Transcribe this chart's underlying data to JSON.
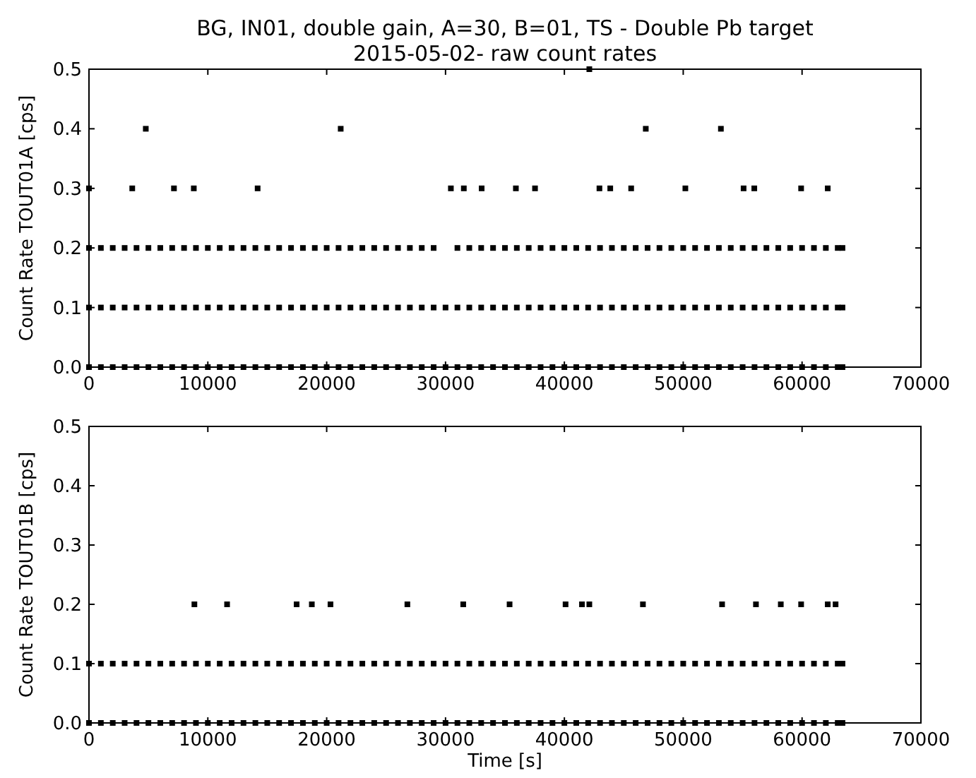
{
  "chart_data": [
    {
      "type": "scatter",
      "title": "BG, IN01, double gain, A=30, B=01, TS - Double Pb target",
      "subtitle": "2015-05-02- raw count rates",
      "ylabel": "Count Rate TOUT01A [cps]",
      "xlim": [
        0,
        70000
      ],
      "xticks": [
        0,
        10000,
        20000,
        30000,
        40000,
        50000,
        60000,
        70000
      ],
      "ylim": [
        0,
        0.5
      ],
      "yticks": [
        {
          "value": 0,
          "label": "0.0"
        },
        0.1,
        0.2,
        0.3,
        0.4,
        0.5
      ],
      "marker": "square",
      "grid": false,
      "series": [
        {
          "color": "#000000",
          "x": [
            0,
            1000,
            2000,
            3000,
            4000,
            5000,
            6000,
            7000,
            8000,
            9000,
            10000,
            11000,
            12000,
            13000,
            14000,
            15000,
            16000,
            17000,
            18000,
            19000,
            20000,
            21000,
            22000,
            23000,
            24000,
            25000,
            26000,
            27000,
            28000,
            29000,
            30000,
            31000,
            32000,
            33000,
            34000,
            35000,
            36000,
            37000,
            38000,
            39000,
            40000,
            41000,
            42000,
            43000,
            44000,
            45000,
            46000,
            47000,
            48000,
            49000,
            50000,
            51000,
            52000,
            53000,
            54000,
            55000,
            56000,
            57000,
            58000,
            59000,
            60000,
            61000,
            62000,
            63000,
            63400
          ],
          "values": [
            0,
            0,
            0,
            0,
            0,
            0,
            0,
            0,
            0,
            0,
            0,
            0,
            0,
            0,
            0,
            0,
            0,
            0,
            0,
            0,
            0,
            0,
            0,
            0,
            0,
            0,
            0,
            0,
            0,
            0,
            0,
            0,
            0,
            0,
            0,
            0,
            0,
            0,
            0,
            0,
            0,
            0,
            0,
            0,
            0,
            0,
            0,
            0,
            0,
            0,
            0,
            0,
            0,
            0,
            0,
            0,
            0,
            0,
            0,
            0,
            0,
            0,
            0,
            0,
            0
          ]
        },
        {
          "color": "#000000",
          "x": [
            0,
            1000,
            2000,
            3000,
            4000,
            5000,
            6000,
            7000,
            8000,
            9000,
            10000,
            11000,
            12000,
            13000,
            14000,
            15000,
            16000,
            17000,
            18000,
            19000,
            20000,
            21000,
            22000,
            23000,
            24000,
            25000,
            26000,
            27000,
            28000,
            29000,
            30000,
            31000,
            32000,
            33000,
            34000,
            35000,
            36000,
            37000,
            38000,
            39000,
            40000,
            41000,
            42000,
            43000,
            44000,
            45000,
            46000,
            47000,
            48000,
            49000,
            50000,
            51000,
            52000,
            53000,
            54000,
            55000,
            56000,
            57000,
            58000,
            59000,
            60000,
            61000,
            62000,
            63000,
            63400
          ],
          "values": [
            0.1,
            0.1,
            0.1,
            0.1,
            0.1,
            0.1,
            0.1,
            0.1,
            0.1,
            0.1,
            0.1,
            0.1,
            0.1,
            0.1,
            0.1,
            0.1,
            0.1,
            0.1,
            0.1,
            0.1,
            0.1,
            0.1,
            0.1,
            0.1,
            0.1,
            0.1,
            0.1,
            0.1,
            0.1,
            0.1,
            0.1,
            0.1,
            0.1,
            0.1,
            0.1,
            0.1,
            0.1,
            0.1,
            0.1,
            0.1,
            0.1,
            0.1,
            0.1,
            0.1,
            0.1,
            0.1,
            0.1,
            0.1,
            0.1,
            0.1,
            0.1,
            0.1,
            0.1,
            0.1,
            0.1,
            0.1,
            0.1,
            0.1,
            0.1,
            0.1,
            0.1,
            0.1,
            0.1,
            0.1,
            0.1
          ]
        },
        {
          "color": "#000000",
          "x": [
            0,
            1000,
            2000,
            3000,
            4000,
            5000,
            6000,
            7000,
            8000,
            9000,
            10000,
            11000,
            12000,
            13000,
            14000,
            15000,
            16000,
            17000,
            18000,
            19000,
            20000,
            21000,
            22000,
            23000,
            24000,
            25000,
            26000,
            27000,
            28000,
            29000,
            31000,
            32000,
            33000,
            34000,
            35000,
            36000,
            37000,
            38000,
            39000,
            40000,
            41000,
            42000,
            43000,
            44000,
            45000,
            46000,
            47000,
            48000,
            49000,
            50000,
            51000,
            52000,
            53000,
            54000,
            55000,
            56000,
            57000,
            58000,
            59000,
            60000,
            61000,
            62000,
            63000,
            63400
          ],
          "values": [
            0.2,
            0.2,
            0.2,
            0.2,
            0.2,
            0.2,
            0.2,
            0.2,
            0.2,
            0.2,
            0.2,
            0.2,
            0.2,
            0.2,
            0.2,
            0.2,
            0.2,
            0.2,
            0.2,
            0.2,
            0.2,
            0.2,
            0.2,
            0.2,
            0.2,
            0.2,
            0.2,
            0.2,
            0.2,
            0.2,
            0.2,
            0.2,
            0.2,
            0.2,
            0.2,
            0.2,
            0.2,
            0.2,
            0.2,
            0.2,
            0.2,
            0.2,
            0.2,
            0.2,
            0.2,
            0.2,
            0.2,
            0.2,
            0.2,
            0.2,
            0.2,
            0.2,
            0.2,
            0.2,
            0.2,
            0.2,
            0.2,
            0.2,
            0.2,
            0.2,
            0.2,
            0.2,
            0.2,
            0.2
          ]
        },
        {
          "color": "#000000",
          "x": [
            0,
            3640,
            7150,
            8820,
            14190,
            30450,
            31540,
            33040,
            35920,
            37530,
            42950,
            43860,
            45620,
            50180,
            55080,
            55980,
            59920,
            62160
          ],
          "values": [
            0.3,
            0.3,
            0.3,
            0.3,
            0.3,
            0.3,
            0.3,
            0.3,
            0.3,
            0.3,
            0.3,
            0.3,
            0.3,
            0.3,
            0.3,
            0.3,
            0.3,
            0.3
          ]
        },
        {
          "color": "#000000",
          "x": [
            4780,
            21180,
            46850,
            53170
          ],
          "values": [
            0.4,
            0.4,
            0.4,
            0.4
          ]
        },
        {
          "color": "#000000",
          "x": [
            42100
          ],
          "values": [
            0.5
          ]
        }
      ]
    },
    {
      "type": "scatter",
      "xlabel": "Time [s]",
      "ylabel": "Count Rate TOUT01B [cps]",
      "xlim": [
        0,
        70000
      ],
      "xticks": [
        0,
        10000,
        20000,
        30000,
        40000,
        50000,
        60000,
        70000
      ],
      "ylim": [
        0,
        0.5
      ],
      "yticks": [
        {
          "value": 0,
          "label": "0.0"
        },
        0.1,
        0.2,
        0.3,
        0.4,
        0.5
      ],
      "marker": "square",
      "grid": false,
      "series": [
        {
          "color": "#000000",
          "x": [
            0,
            1000,
            2000,
            3000,
            4000,
            5000,
            6000,
            7000,
            8000,
            9000,
            10000,
            11000,
            12000,
            13000,
            14000,
            15000,
            16000,
            17000,
            18000,
            19000,
            20000,
            21000,
            22000,
            23000,
            24000,
            25000,
            26000,
            27000,
            28000,
            29000,
            30000,
            31000,
            32000,
            33000,
            34000,
            35000,
            36000,
            37000,
            38000,
            39000,
            40000,
            41000,
            42000,
            43000,
            44000,
            45000,
            46000,
            47000,
            48000,
            49000,
            50000,
            51000,
            52000,
            53000,
            54000,
            55000,
            56000,
            57000,
            58000,
            59000,
            60000,
            61000,
            62000,
            63000,
            63400
          ],
          "values": [
            0,
            0,
            0,
            0,
            0,
            0,
            0,
            0,
            0,
            0,
            0,
            0,
            0,
            0,
            0,
            0,
            0,
            0,
            0,
            0,
            0,
            0,
            0,
            0,
            0,
            0,
            0,
            0,
            0,
            0,
            0,
            0,
            0,
            0,
            0,
            0,
            0,
            0,
            0,
            0,
            0,
            0,
            0,
            0,
            0,
            0,
            0,
            0,
            0,
            0,
            0,
            0,
            0,
            0,
            0,
            0,
            0,
            0,
            0,
            0,
            0,
            0,
            0,
            0,
            0
          ]
        },
        {
          "color": "#000000",
          "x": [
            0,
            1000,
            2000,
            3000,
            4000,
            5000,
            6000,
            7000,
            8000,
            9000,
            10000,
            11000,
            12000,
            13000,
            14000,
            15000,
            16000,
            17000,
            18000,
            19000,
            20000,
            21000,
            22000,
            23000,
            24000,
            25000,
            26000,
            27000,
            28000,
            29000,
            30000,
            31000,
            32000,
            33000,
            34000,
            35000,
            36000,
            37000,
            38000,
            39000,
            40000,
            41000,
            42000,
            43000,
            44000,
            45000,
            46000,
            47000,
            48000,
            49000,
            50000,
            51000,
            52000,
            53000,
            54000,
            55000,
            56000,
            57000,
            58000,
            59000,
            60000,
            61000,
            62000,
            63000,
            63400
          ],
          "values": [
            0.1,
            0.1,
            0.1,
            0.1,
            0.1,
            0.1,
            0.1,
            0.1,
            0.1,
            0.1,
            0.1,
            0.1,
            0.1,
            0.1,
            0.1,
            0.1,
            0.1,
            0.1,
            0.1,
            0.1,
            0.1,
            0.1,
            0.1,
            0.1,
            0.1,
            0.1,
            0.1,
            0.1,
            0.1,
            0.1,
            0.1,
            0.1,
            0.1,
            0.1,
            0.1,
            0.1,
            0.1,
            0.1,
            0.1,
            0.1,
            0.1,
            0.1,
            0.1,
            0.1,
            0.1,
            0.1,
            0.1,
            0.1,
            0.1,
            0.1,
            0.1,
            0.1,
            0.1,
            0.1,
            0.1,
            0.1,
            0.1,
            0.1,
            0.1,
            0.1,
            0.1,
            0.1,
            0.1,
            0.1,
            0.1
          ]
        },
        {
          "color": "#000000",
          "x": [
            8870,
            11620,
            17470,
            18750,
            20320,
            26790,
            31490,
            35390,
            40100,
            41480,
            42100,
            46610,
            53270,
            56120,
            58210,
            59920,
            62160,
            62820
          ],
          "values": [
            0.2,
            0.2,
            0.2,
            0.2,
            0.2,
            0.2,
            0.2,
            0.2,
            0.2,
            0.2,
            0.2,
            0.2,
            0.2,
            0.2,
            0.2,
            0.2,
            0.2,
            0.2
          ]
        }
      ]
    }
  ]
}
